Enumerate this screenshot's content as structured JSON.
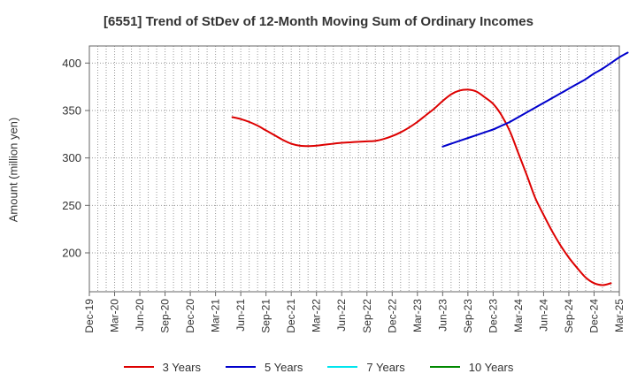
{
  "chart_data": {
    "type": "line",
    "title": "[6551]  Trend of StDev of 12-Month Moving Sum of Ordinary Incomes",
    "ylabel": "Amount (million yen)",
    "xlabel": "",
    "x_start": "2019-12",
    "x_end": "2025-03",
    "x_ticks": [
      "Dec-19",
      "Mar-20",
      "Jun-20",
      "Sep-20",
      "Dec-20",
      "Mar-21",
      "Jun-21",
      "Sep-21",
      "Dec-21",
      "Mar-22",
      "Jun-22",
      "Sep-22",
      "Dec-22",
      "Mar-23",
      "Jun-23",
      "Sep-23",
      "Dec-23",
      "Mar-24",
      "Jun-24",
      "Sep-24",
      "Dec-24",
      "Mar-25"
    ],
    "ylim": [
      159,
      418
    ],
    "y_ticks": [
      200,
      250,
      300,
      350,
      400
    ],
    "grid": true,
    "legend_position": "bottom",
    "series": [
      {
        "name": "3 Years",
        "color": "#dd0000",
        "points": [
          [
            "2021-05",
            343
          ],
          [
            "2021-06",
            341
          ],
          [
            "2021-07",
            338
          ],
          [
            "2021-08",
            334
          ],
          [
            "2021-09",
            329
          ],
          [
            "2021-10",
            324
          ],
          [
            "2021-11",
            319
          ],
          [
            "2021-12",
            315
          ],
          [
            "2022-01",
            313
          ],
          [
            "2022-02",
            312.5
          ],
          [
            "2022-03",
            313
          ],
          [
            "2022-04",
            314
          ],
          [
            "2022-05",
            315
          ],
          [
            "2022-06",
            316
          ],
          [
            "2022-07",
            316.5
          ],
          [
            "2022-08",
            317
          ],
          [
            "2022-09",
            317.5
          ],
          [
            "2022-10",
            318
          ],
          [
            "2022-11",
            320
          ],
          [
            "2022-12",
            323
          ],
          [
            "2023-01",
            327
          ],
          [
            "2023-02",
            332
          ],
          [
            "2023-03",
            338
          ],
          [
            "2023-04",
            345
          ],
          [
            "2023-05",
            352
          ],
          [
            "2023-06",
            360
          ],
          [
            "2023-07",
            367
          ],
          [
            "2023-08",
            371
          ],
          [
            "2023-09",
            372
          ],
          [
            "2023-10",
            370
          ],
          [
            "2023-11",
            364
          ],
          [
            "2023-12",
            357
          ],
          [
            "2024-01",
            345
          ],
          [
            "2024-02",
            328
          ],
          [
            "2024-03",
            305
          ],
          [
            "2024-04",
            282
          ],
          [
            "2024-05",
            258
          ],
          [
            "2024-06",
            240
          ],
          [
            "2024-07",
            223
          ],
          [
            "2024-08",
            208
          ],
          [
            "2024-09",
            195
          ],
          [
            "2024-10",
            184
          ],
          [
            "2024-11",
            174
          ],
          [
            "2024-12",
            168
          ],
          [
            "2025-01",
            166
          ],
          [
            "2025-02",
            168
          ]
        ]
      },
      {
        "name": "5 Years",
        "color": "#0000cc",
        "points": [
          [
            "2023-06",
            312
          ],
          [
            "2023-07",
            315
          ],
          [
            "2023-08",
            318
          ],
          [
            "2023-09",
            321
          ],
          [
            "2023-10",
            324
          ],
          [
            "2023-11",
            327
          ],
          [
            "2023-12",
            330
          ],
          [
            "2024-01",
            334
          ],
          [
            "2024-02",
            338
          ],
          [
            "2024-03",
            343
          ],
          [
            "2024-04",
            348
          ],
          [
            "2024-05",
            353
          ],
          [
            "2024-06",
            358
          ],
          [
            "2024-07",
            363
          ],
          [
            "2024-08",
            368
          ],
          [
            "2024-09",
            373
          ],
          [
            "2024-10",
            378
          ],
          [
            "2024-11",
            383
          ],
          [
            "2024-12",
            389
          ],
          [
            "2025-01",
            394
          ],
          [
            "2025-02",
            400
          ],
          [
            "2025-03",
            406
          ],
          [
            "2025-04",
            411
          ]
        ]
      },
      {
        "name": "7 Years",
        "color": "#00e5ee",
        "points": []
      },
      {
        "name": "10 Years",
        "color": "#008800",
        "points": []
      }
    ]
  }
}
